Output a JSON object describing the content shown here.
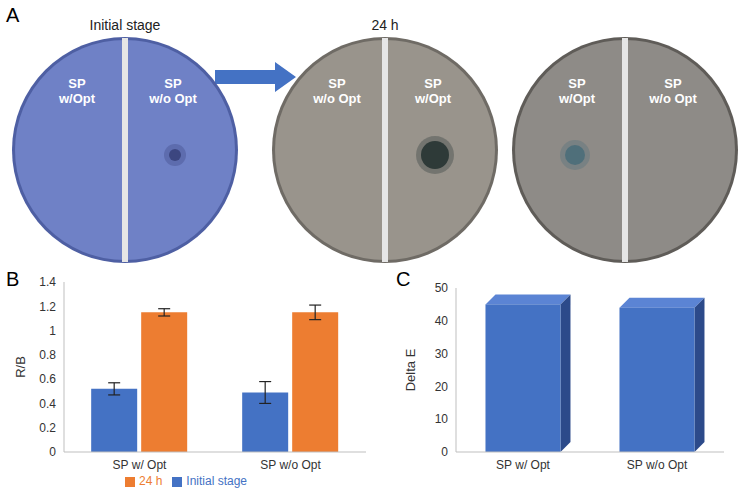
{
  "panel_labels": [
    "A",
    "B",
    "C"
  ],
  "images": {
    "stage_labels": [
      "Initial stage",
      "24 h"
    ],
    "dishes": [
      {
        "left": "SP w/Opt",
        "right": "SP w/o Opt"
      },
      {
        "left": "SP w/o Opt",
        "right": "SP w/Opt"
      },
      {
        "left": "SP w/Opt",
        "right": "SP w/o Opt"
      }
    ]
  },
  "chart_data": [
    {
      "type": "bar",
      "categories": [
        "SP w/ Opt",
        "SP w/o Opt"
      ],
      "series": [
        {
          "name": "Initial stage",
          "color": "#4472c4",
          "values": [
            0.52,
            0.49
          ],
          "errors": [
            0.05,
            0.09
          ]
        },
        {
          "name": "24 h",
          "color": "#ed7d31",
          "values": [
            1.15,
            1.15
          ],
          "errors": [
            0.03,
            0.06
          ]
        }
      ],
      "ylabel": "R/B",
      "ylim": [
        0,
        1.4
      ],
      "yticks": [
        0,
        0.2,
        0.4,
        0.6,
        0.8,
        1,
        1.2,
        1.4
      ],
      "grid": false,
      "legend": "bottom"
    },
    {
      "type": "bar",
      "categories": [
        "SP w/ Opt",
        "SP w/o Opt"
      ],
      "values": [
        45,
        44
      ],
      "color": "#4472c4",
      "ylabel": "Delta E",
      "ylim": [
        0,
        50
      ],
      "yticks": [
        0,
        10,
        20,
        30,
        40,
        50
      ],
      "grid": false
    }
  ]
}
